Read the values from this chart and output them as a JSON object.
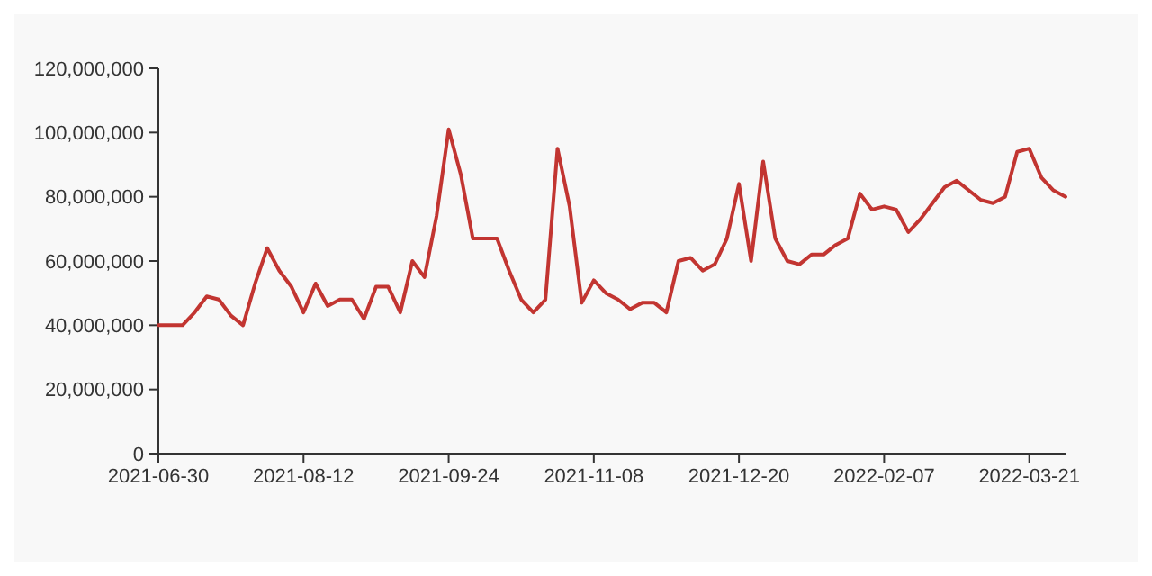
{
  "chart_data": {
    "type": "line",
    "categories": [
      "2021-06-30",
      null,
      null,
      null,
      null,
      null,
      null,
      null,
      null,
      null,
      null,
      null,
      "2021-08-12",
      null,
      null,
      null,
      null,
      null,
      null,
      null,
      null,
      null,
      null,
      null,
      "2021-09-24",
      null,
      null,
      null,
      null,
      null,
      null,
      null,
      null,
      null,
      null,
      null,
      "2021-11-08",
      null,
      null,
      null,
      null,
      null,
      null,
      null,
      null,
      null,
      null,
      null,
      "2021-12-20",
      null,
      null,
      null,
      null,
      null,
      null,
      null,
      null,
      null,
      null,
      null,
      "2022-02-07",
      null,
      null,
      null,
      null,
      null,
      null,
      null,
      null,
      null,
      null,
      null,
      "2022-03-21",
      null,
      null,
      null
    ],
    "series": [
      {
        "color": "#c23531",
        "values": [
          40000000,
          40000000,
          40000000,
          44000000,
          49000000,
          48000000,
          43000000,
          40000000,
          53000000,
          64000000,
          57000000,
          52000000,
          44000000,
          53000000,
          46000000,
          48000000,
          48000000,
          42000000,
          52000000,
          52000000,
          44000000,
          60000000,
          55000000,
          74000000,
          101000000,
          87000000,
          67000000,
          67000000,
          67000000,
          57000000,
          48000000,
          44000000,
          48000000,
          95000000,
          77000000,
          47000000,
          54000000,
          50000000,
          48000000,
          45000000,
          47000000,
          47000000,
          44000000,
          60000000,
          61000000,
          57000000,
          59000000,
          67000000,
          84000000,
          60000000,
          91000000,
          67000000,
          60000000,
          59000000,
          62000000,
          62000000,
          65000000,
          67000000,
          81000000,
          76000000,
          77000000,
          76000000,
          69000000,
          73000000,
          78000000,
          83000000,
          85000000,
          82000000,
          79000000,
          78000000,
          80000000,
          94000000,
          95000000,
          86000000,
          82000000,
          80000000
        ]
      }
    ],
    "ylim": [
      0,
      120000000
    ],
    "yticks": [
      {
        "value": 0,
        "label": "0"
      },
      {
        "value": 20000000,
        "label": "20,000,000"
      },
      {
        "value": 40000000,
        "label": "40,000,000"
      },
      {
        "value": 60000000,
        "label": "60,000,000"
      },
      {
        "value": 80000000,
        "label": "80,000,000"
      },
      {
        "value": 100000000,
        "label": "100,000,000"
      },
      {
        "value": 120000000,
        "label": "120,000,000"
      }
    ],
    "marker": "none",
    "line_style": "solid"
  }
}
